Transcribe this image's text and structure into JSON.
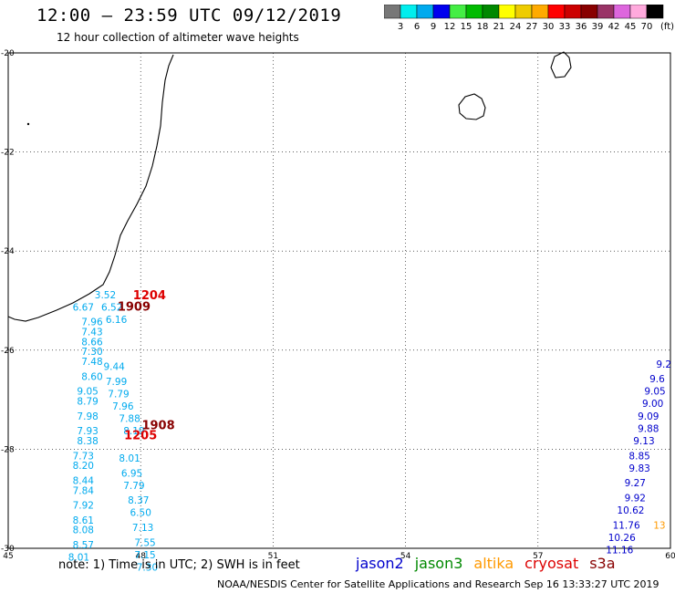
{
  "title": "12:00 — 23:59 UTC 09/12/2019",
  "subtitle": "12 hour collection of altimeter wave heights",
  "note": "note:  1) Time is in UTC;  2) SWH is in feet",
  "footer": "NOAA/NESDIS Center for Satellite Applications and Research    Sep 16 13:33:27 UTC 2019",
  "scale": {
    "labels": [
      "3",
      "6",
      "9",
      "12",
      "15",
      "18",
      "21",
      "24",
      "27",
      "30",
      "33",
      "36",
      "39",
      "42",
      "45",
      "70"
    ],
    "unit": "(ft)",
    "colors": [
      "#777777",
      "#00eeee",
      "#00aaee",
      "#0000ee",
      "#44ee44",
      "#00bb00",
      "#008800",
      "#ffff00",
      "#eecc00",
      "#ffaa00",
      "#ff0000",
      "#cc0000",
      "#880000",
      "#993366",
      "#dd66dd",
      "#ffaadd",
      "#000000"
    ]
  },
  "axes": {
    "lon_ticks": [
      "45",
      "48",
      "51",
      "54",
      "57",
      "60"
    ],
    "lat_ticks": [
      "-20",
      "-22",
      "-24",
      "-26",
      "-28",
      "-30"
    ]
  },
  "satellites": [
    {
      "name": "jason2",
      "color": "#0000cc"
    },
    {
      "name": "jason3",
      "color": "#008800"
    },
    {
      "name": "altika",
      "color": "#ff9900"
    },
    {
      "name": "cryosat",
      "color": "#dd0000"
    },
    {
      "name": "s3a",
      "color": "#880000"
    }
  ],
  "chart_data": {
    "type": "scatter",
    "xlim": [
      45,
      60
    ],
    "ylim": [
      -30,
      -20
    ],
    "xlabel": "",
    "ylabel": "",
    "grid": "dotted",
    "times": [
      {
        "label": "1204",
        "lon": 48.2,
        "lat": -24.97,
        "color": "#dd0000"
      },
      {
        "label": "1909",
        "lon": 47.85,
        "lat": -25.2,
        "color": "#880000"
      },
      {
        "label": "1908",
        "lon": 48.4,
        "lat": -27.6,
        "color": "#880000"
      },
      {
        "label": "1205",
        "lon": 48.0,
        "lat": -27.8,
        "color": "#dd0000"
      }
    ],
    "series": [
      {
        "name": "track_a",
        "color": "#00aaee",
        "points": [
          {
            "lon": 46.7,
            "lat": -25.2,
            "v": "6.67"
          },
          {
            "lon": 46.9,
            "lat": -25.5,
            "v": "7.96"
          },
          {
            "lon": 46.9,
            "lat": -25.7,
            "v": "7.43"
          },
          {
            "lon": 46.9,
            "lat": -25.9,
            "v": "8.66"
          },
          {
            "lon": 46.9,
            "lat": -26.1,
            "v": "7.30"
          },
          {
            "lon": 46.9,
            "lat": -26.3,
            "v": "7.48"
          },
          {
            "lon": 46.9,
            "lat": -26.6,
            "v": "8.60"
          },
          {
            "lon": 46.8,
            "lat": -26.9,
            "v": "9.05"
          },
          {
            "lon": 46.8,
            "lat": -27.1,
            "v": "8.79"
          },
          {
            "lon": 46.8,
            "lat": -27.4,
            "v": "7.98"
          },
          {
            "lon": 46.8,
            "lat": -27.7,
            "v": "7.93"
          },
          {
            "lon": 46.8,
            "lat": -27.9,
            "v": "8.38"
          },
          {
            "lon": 46.7,
            "lat": -28.2,
            "v": "7.73"
          },
          {
            "lon": 46.7,
            "lat": -28.4,
            "v": "8.20"
          },
          {
            "lon": 46.7,
            "lat": -28.7,
            "v": "8.44"
          },
          {
            "lon": 46.7,
            "lat": -28.9,
            "v": "7.84"
          },
          {
            "lon": 46.7,
            "lat": -29.2,
            "v": "7.92"
          },
          {
            "lon": 46.7,
            "lat": -29.5,
            "v": "8.61"
          },
          {
            "lon": 46.7,
            "lat": -29.7,
            "v": "8.08"
          },
          {
            "lon": 46.7,
            "lat": -30.0,
            "v": "8.57"
          },
          {
            "lon": 46.6,
            "lat": -30.25,
            "v": "8.01"
          }
        ]
      },
      {
        "name": "track_b",
        "color": "#00aaee",
        "points": [
          {
            "lon": 47.2,
            "lat": -24.95,
            "v": "3.52"
          },
          {
            "lon": 47.35,
            "lat": -25.2,
            "v": "6.52"
          },
          {
            "lon": 47.45,
            "lat": -25.45,
            "v": "6.16"
          },
          {
            "lon": 47.4,
            "lat": -26.4,
            "v": "9.44"
          },
          {
            "lon": 47.45,
            "lat": -26.7,
            "v": "7.99"
          },
          {
            "lon": 47.5,
            "lat": -26.95,
            "v": "7.79"
          },
          {
            "lon": 47.6,
            "lat": -27.2,
            "v": "7.96"
          },
          {
            "lon": 47.75,
            "lat": -27.45,
            "v": "7.88"
          },
          {
            "lon": 47.85,
            "lat": -27.7,
            "v": "8.19"
          },
          {
            "lon": 47.75,
            "lat": -28.25,
            "v": "8.01"
          },
          {
            "lon": 47.8,
            "lat": -28.55,
            "v": "6.95"
          },
          {
            "lon": 47.85,
            "lat": -28.8,
            "v": "7.79"
          },
          {
            "lon": 47.95,
            "lat": -29.1,
            "v": "8.37"
          },
          {
            "lon": 48.0,
            "lat": -29.35,
            "v": "6.50"
          },
          {
            "lon": 48.05,
            "lat": -29.65,
            "v": "7.13"
          },
          {
            "lon": 48.1,
            "lat": -29.95,
            "v": "7.55"
          },
          {
            "lon": 48.1,
            "lat": -30.2,
            "v": "7.15"
          },
          {
            "lon": 48.15,
            "lat": -30.45,
            "v": "7.30"
          }
        ]
      },
      {
        "name": "track_c",
        "color": "#0000cc",
        "points": [
          {
            "lon": 59.85,
            "lat": -26.35,
            "v": "9.2"
          },
          {
            "lon": 59.7,
            "lat": -26.65,
            "v": "9.6"
          },
          {
            "lon": 59.65,
            "lat": -26.9,
            "v": "9.05"
          },
          {
            "lon": 59.6,
            "lat": -27.15,
            "v": "9.00"
          },
          {
            "lon": 59.5,
            "lat": -27.4,
            "v": "9.09"
          },
          {
            "lon": 59.5,
            "lat": -27.65,
            "v": "9.88"
          },
          {
            "lon": 59.4,
            "lat": -27.9,
            "v": "9.13"
          },
          {
            "lon": 59.3,
            "lat": -28.2,
            "v": "8.85"
          },
          {
            "lon": 59.3,
            "lat": -28.45,
            "v": "9.83"
          },
          {
            "lon": 59.2,
            "lat": -28.75,
            "v": "9.27"
          },
          {
            "lon": 59.2,
            "lat": -29.05,
            "v": "9.92"
          },
          {
            "lon": 59.1,
            "lat": -29.3,
            "v": "10.62"
          },
          {
            "lon": 59.0,
            "lat": -29.6,
            "v": "11.76"
          },
          {
            "lon": 58.9,
            "lat": -29.85,
            "v": "10.26"
          },
          {
            "lon": 58.85,
            "lat": -30.1,
            "v": "11.16"
          }
        ]
      },
      {
        "name": "track_d",
        "color": "#ff9900",
        "points": [
          {
            "lon": 59.75,
            "lat": -29.6,
            "v": "13"
          }
        ]
      }
    ]
  }
}
